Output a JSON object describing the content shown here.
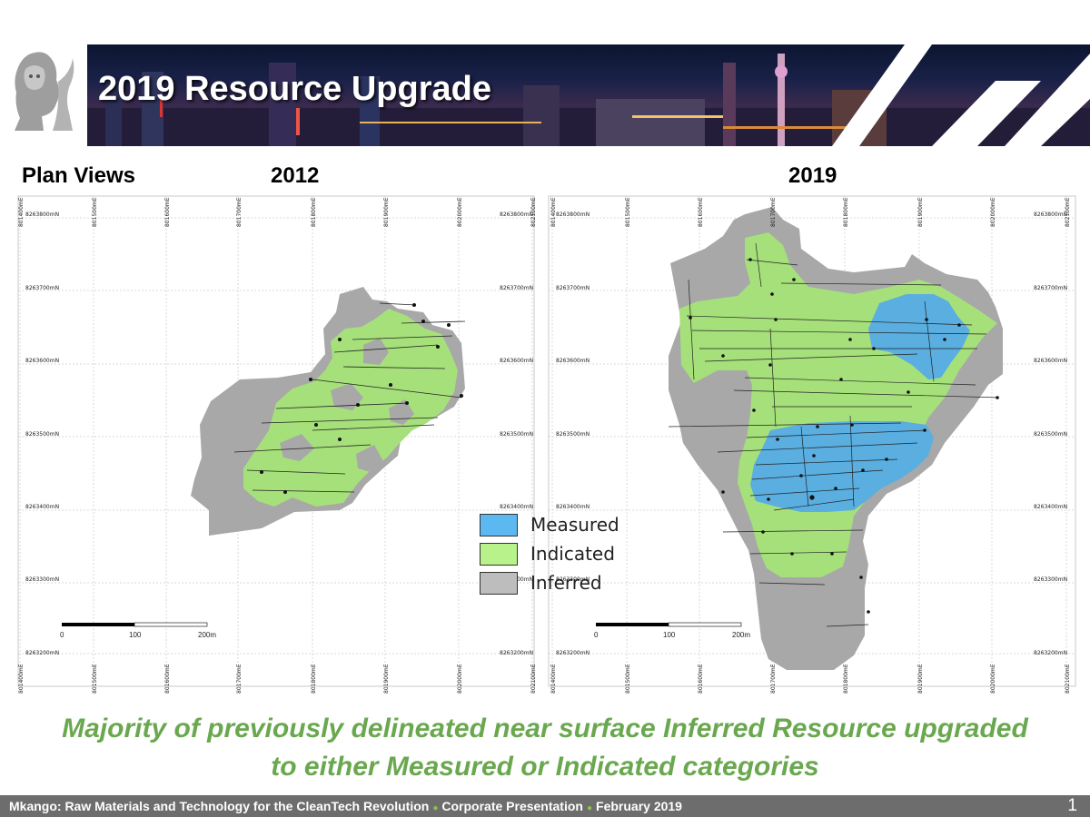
{
  "header": {
    "title": "2019 Resource Upgrade"
  },
  "plan_views_label": "Plan Views",
  "maps": [
    {
      "year": "2012",
      "easting_labels": [
        "801400mE",
        "801500mE",
        "801600mE",
        "801700mE",
        "801800mE",
        "801900mE",
        "802000mE",
        "802100mE"
      ],
      "northing_labels": [
        "8263800mN",
        "8263700mN",
        "8263600mN",
        "8263500mN",
        "8263400mN",
        "8263300mN",
        "8263200mN"
      ],
      "scale": {
        "labels": [
          "0",
          "100",
          "200m"
        ]
      }
    },
    {
      "year": "2019",
      "easting_labels": [
        "801400mE",
        "801500mE",
        "801600mE",
        "801700mE",
        "801800mE",
        "801900mE",
        "802000mE",
        "802100mE"
      ],
      "northing_labels": [
        "8263800mN",
        "8263700mN",
        "8263600mN",
        "8263500mN",
        "8263400mN",
        "8263300mN",
        "8263200mN"
      ],
      "scale": {
        "labels": [
          "0",
          "100",
          "200m"
        ]
      }
    }
  ],
  "legend": [
    {
      "label": "Measured",
      "color": "#5bb8f0"
    },
    {
      "label": "Indicated",
      "color": "#b8f28a"
    },
    {
      "label": "Inferred",
      "color": "#bdbdbd"
    }
  ],
  "colors": {
    "measured_fill": "#5aaee0",
    "indicated_fill": "#a6e07a",
    "inferred_fill": "#a8a8a8",
    "caption": "#6aa84f",
    "footer_bg": "#6d6d6d"
  },
  "caption": {
    "line1": "Majority of previously delineated near surface Inferred Resource upgraded",
    "line2": "to either Measured or Indicated categories"
  },
  "footer": {
    "part1": "Mkango: Raw Materials and Technology for the CleanTech Revolution",
    "part2": "Corporate Presentation",
    "part3": "February 2019",
    "page_number": "1"
  }
}
